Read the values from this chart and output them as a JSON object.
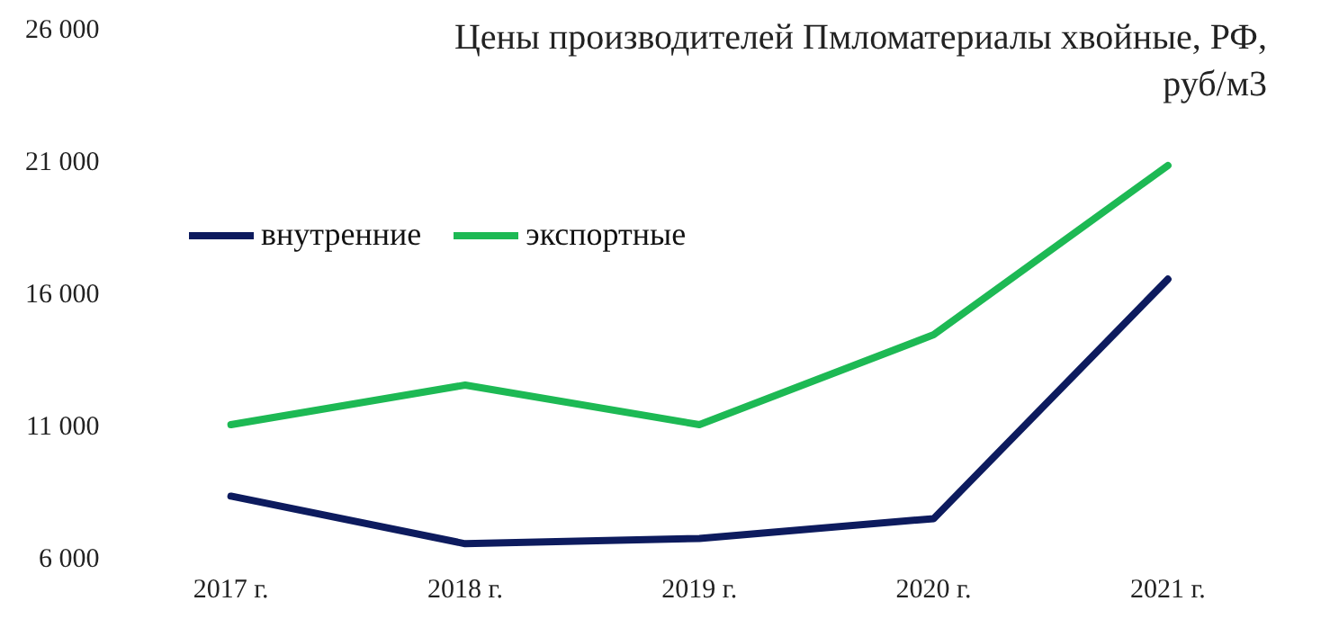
{
  "chart_data": {
    "type": "line",
    "title": "Цены производителей Пмломатериалы хвойные, РФ, руб/м3",
    "categories": [
      "2017 г.",
      "2018 г.",
      "2019 г.",
      "2020 г.",
      "2021 г."
    ],
    "series": [
      {
        "name": "внутренние",
        "color": "#0d1b5e",
        "values": [
          8400,
          6600,
          6800,
          7550,
          16600
        ]
      },
      {
        "name": "экспортные",
        "color": "#1db954",
        "values": [
          11100,
          12600,
          11100,
          14500,
          20900
        ]
      }
    ],
    "ylim": [
      6000,
      26000
    ],
    "yticks": [
      {
        "value": 6000,
        "label": "6 000"
      },
      {
        "value": 11000,
        "label": "11 000"
      },
      {
        "value": 16000,
        "label": "16 000"
      },
      {
        "value": 21000,
        "label": "21 000"
      },
      {
        "value": 26000,
        "label": "26 000"
      }
    ],
    "grid": false,
    "legend": "top left",
    "marker": "none",
    "line_style": "solid"
  }
}
